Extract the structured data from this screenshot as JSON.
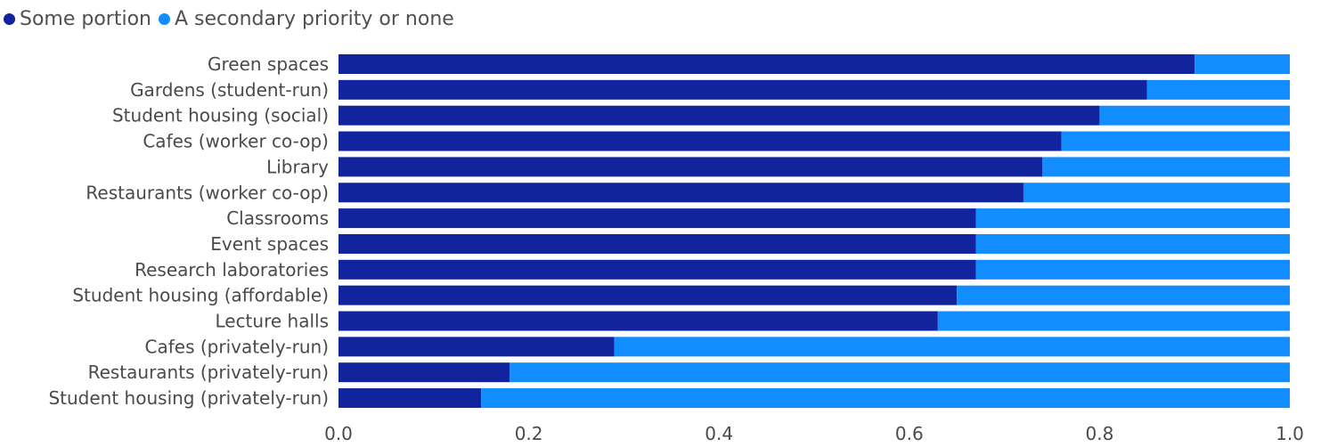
{
  "chart_data": {
    "type": "bar",
    "orientation": "horizontal",
    "stacked": true,
    "categories": [
      "Green spaces",
      "Gardens (student-run)",
      "Student housing (social)",
      "Cafes (worker co-op)",
      "Library",
      "Restaurants (worker co-op)",
      "Classrooms",
      "Event spaces",
      "Research laboratories",
      "Student housing (affordable)",
      "Lecture halls",
      "Cafes (privately-run)",
      "Restaurants (privately-run)",
      "Student housing (privately-run)"
    ],
    "series": [
      {
        "name": "Some portion",
        "color": "#12239e",
        "values": [
          0.9,
          0.85,
          0.8,
          0.76,
          0.74,
          0.72,
          0.67,
          0.67,
          0.67,
          0.65,
          0.63,
          0.29,
          0.18,
          0.15
        ]
      },
      {
        "name": "A secondary priority or none",
        "color": "#118dff",
        "values": [
          0.1,
          0.15,
          0.2,
          0.24,
          0.26,
          0.28,
          0.33,
          0.33,
          0.33,
          0.35,
          0.37,
          0.71,
          0.82,
          0.85
        ]
      }
    ],
    "xlim": [
      0,
      1
    ],
    "xticks": [
      "0.0",
      "0.2",
      "0.4",
      "0.6",
      "0.8",
      "1.0"
    ],
    "title": "",
    "xlabel": "",
    "ylabel": "",
    "grid": false,
    "legend_position": "top-left"
  }
}
